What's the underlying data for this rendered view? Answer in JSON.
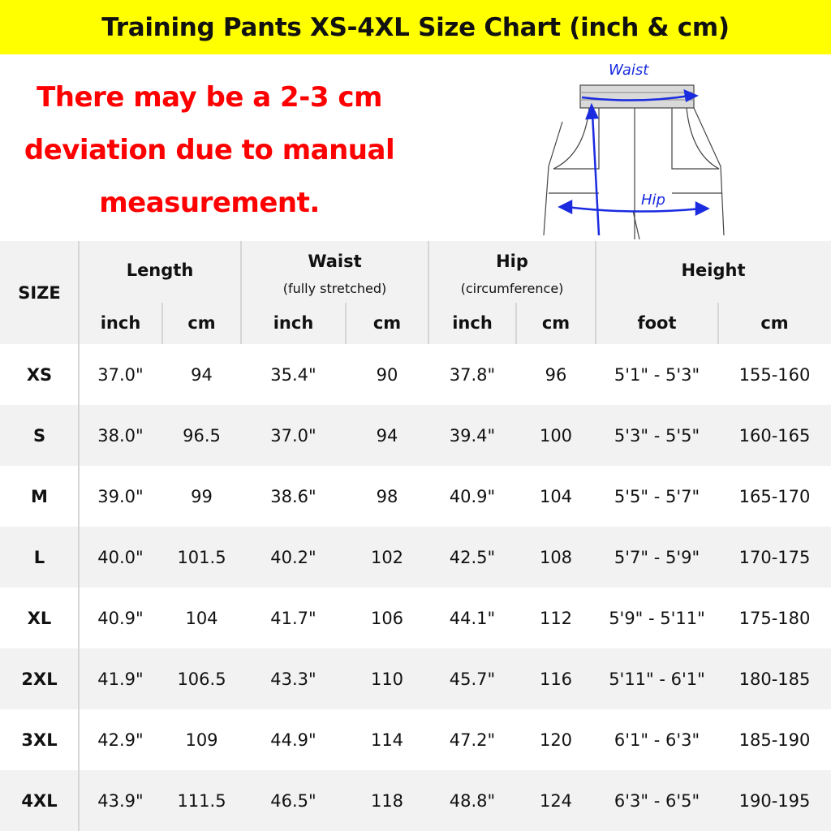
{
  "title": "Training Pants XS-4XL Size Chart (inch & cm)",
  "note_lines": [
    "There may be a 2-3 cm",
    "deviation due to manual",
    "measurement."
  ],
  "colors": {
    "title_bg": "#ffff00",
    "note_text": "#ff0000",
    "header_bg": "#f2f2f2",
    "diagram_arrows": "#1a2be0"
  },
  "diagram": {
    "waist_label": "Waist",
    "hip_label": "Hip"
  },
  "table": {
    "size_header": "SIZE",
    "groups": [
      {
        "label": "Length",
        "sub": "",
        "units": [
          "inch",
          "cm"
        ]
      },
      {
        "label": "Waist",
        "sub": "(fully stretched)",
        "units": [
          "inch",
          "cm"
        ]
      },
      {
        "label": "Hip",
        "sub": "(circumference)",
        "units": [
          "inch",
          "cm"
        ]
      },
      {
        "label": "Height",
        "sub": "",
        "units": [
          "foot",
          "cm"
        ]
      }
    ],
    "rows": [
      [
        "XS",
        "37.0\"",
        "94",
        "35.4\"",
        "90",
        "37.8\"",
        "96",
        "5'1\" - 5'3\"",
        "155-160"
      ],
      [
        "S",
        "38.0\"",
        "96.5",
        "37.0\"",
        "94",
        "39.4\"",
        "100",
        "5'3\" - 5'5\"",
        "160-165"
      ],
      [
        "M",
        "39.0\"",
        "99",
        "38.6\"",
        "98",
        "40.9\"",
        "104",
        "5'5\" - 5'7\"",
        "165-170"
      ],
      [
        "L",
        "40.0\"",
        "101.5",
        "40.2\"",
        "102",
        "42.5\"",
        "108",
        "5'7\" - 5'9\"",
        "170-175"
      ],
      [
        "XL",
        "40.9\"",
        "104",
        "41.7\"",
        "106",
        "44.1\"",
        "112",
        "5'9\" - 5'11\"",
        "175-180"
      ],
      [
        "2XL",
        "41.9\"",
        "106.5",
        "43.3\"",
        "110",
        "45.7\"",
        "116",
        "5'11\" - 6'1\"",
        "180-185"
      ],
      [
        "3XL",
        "42.9\"",
        "109",
        "44.9\"",
        "114",
        "47.2\"",
        "120",
        "6'1\" - 6'3\"",
        "185-190"
      ],
      [
        "4XL",
        "43.9\"",
        "111.5",
        "46.5\"",
        "118",
        "48.8\"",
        "124",
        "6'3\" - 6'5\"",
        "190-195"
      ]
    ]
  }
}
